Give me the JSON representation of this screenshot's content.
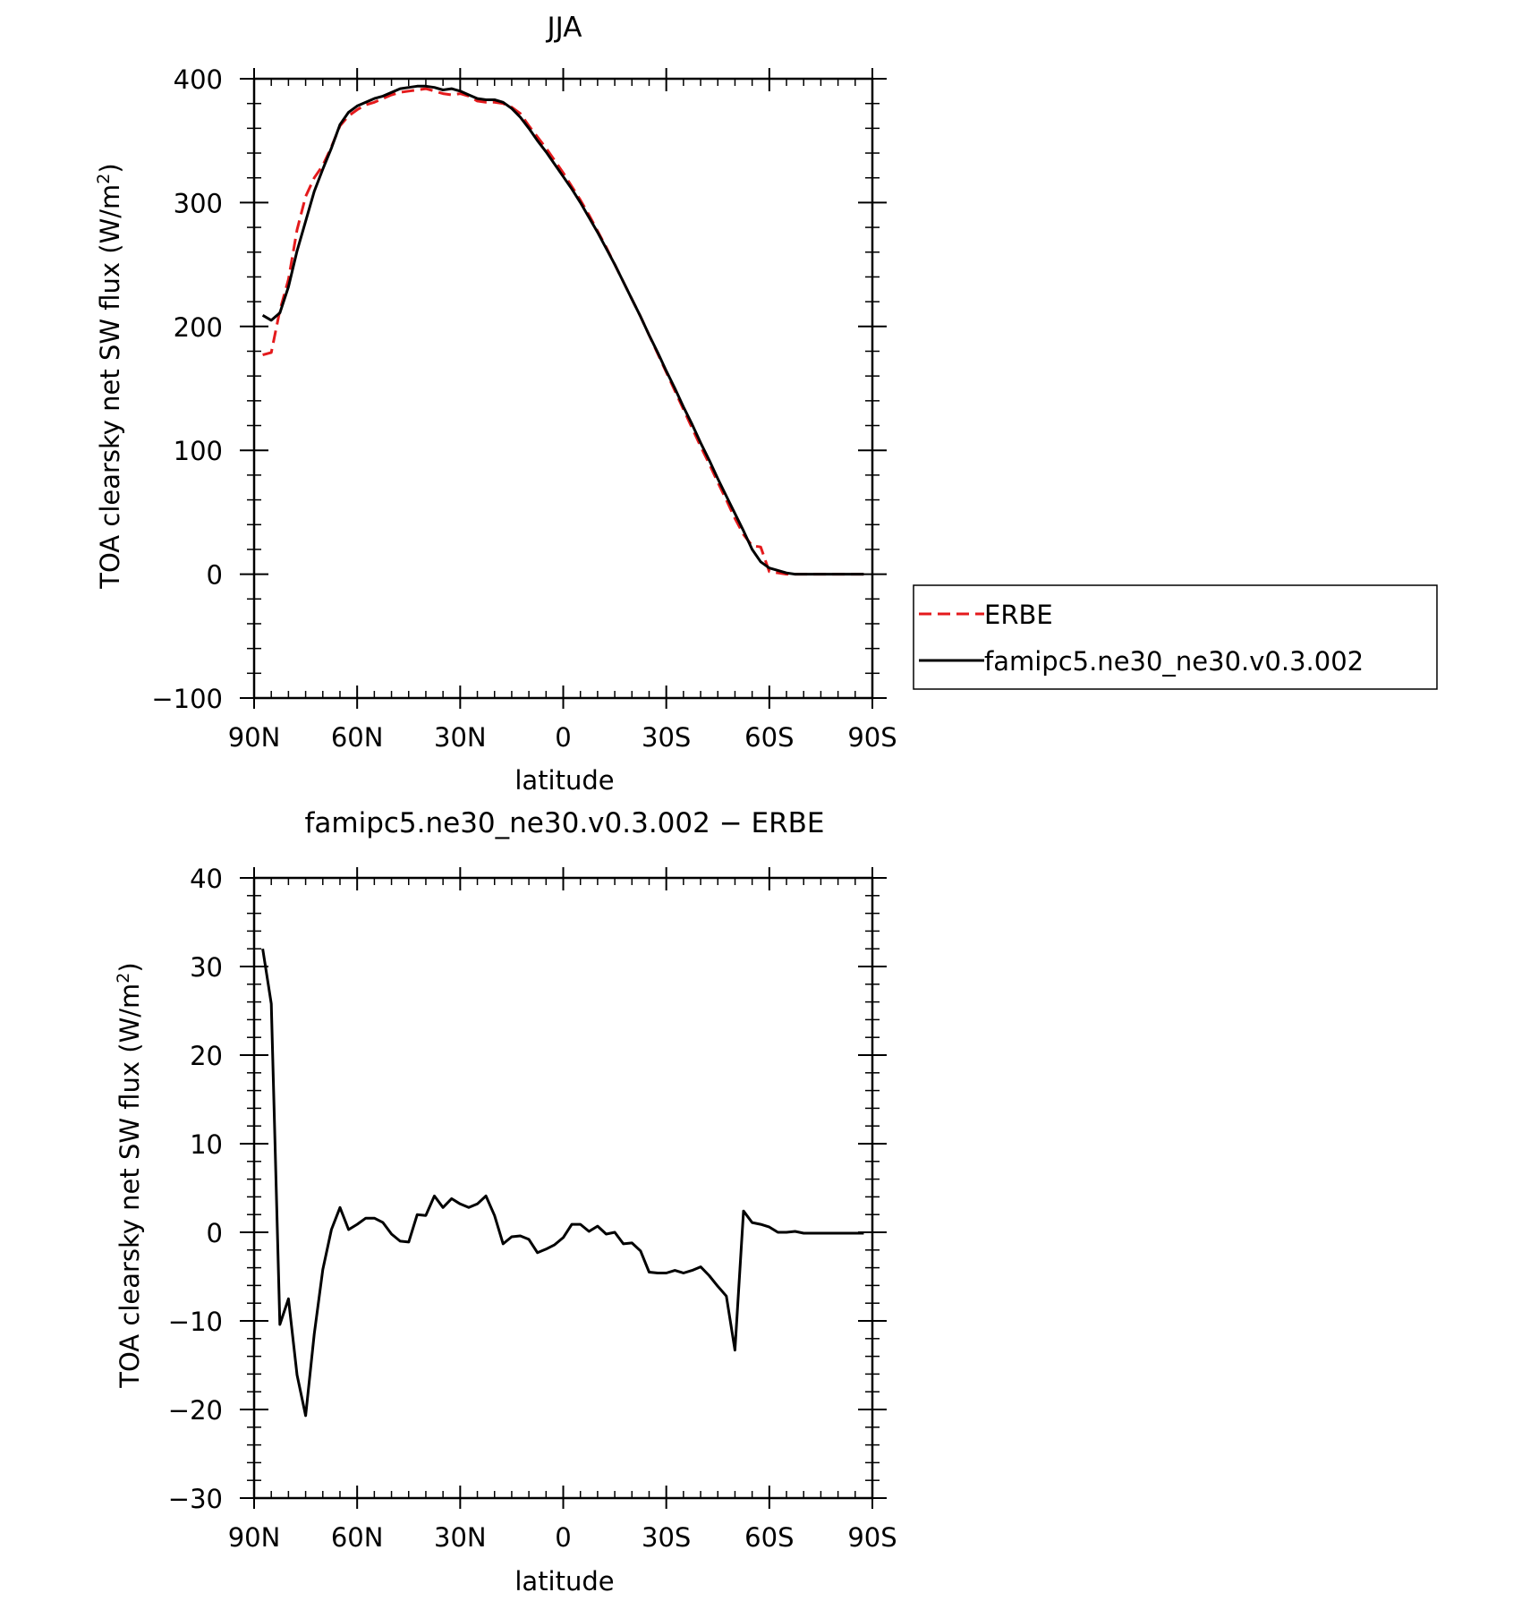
{
  "chart_data": [
    {
      "type": "line",
      "title": "JJA",
      "xlabel": "latitude",
      "ylabel": "TOA clearsky net SW flux (W/m",
      "ylabel_sup": "2",
      "ylabel_tail": ")",
      "xlim": [
        90,
        -90
      ],
      "ylim": [
        -100,
        400
      ],
      "xticks": [
        {
          "value": 90,
          "label": "90N"
        },
        {
          "value": 60,
          "label": "60N"
        },
        {
          "value": 30,
          "label": "30N"
        },
        {
          "value": 0,
          "label": "0"
        },
        {
          "value": -30,
          "label": "30S"
        },
        {
          "value": -60,
          "label": "60S"
        },
        {
          "value": -90,
          "label": "90S"
        }
      ],
      "yticks": [
        {
          "value": 400,
          "label": "400"
        },
        {
          "value": 300,
          "label": "300"
        },
        {
          "value": 200,
          "label": "200"
        },
        {
          "value": 100,
          "label": "100"
        },
        {
          "value": 0,
          "label": "0"
        },
        {
          "value": -100,
          "label": "−100"
        }
      ],
      "legend_position": "right",
      "series": [
        {
          "name": "ERBE",
          "color": "#e41a1c",
          "dash": "dashed",
          "x": [
            87.5,
            85,
            82.5,
            80,
            77.5,
            75,
            72.5,
            70,
            67.5,
            65,
            62.5,
            60,
            57.5,
            55,
            52.5,
            50,
            47.5,
            45,
            42.5,
            40,
            37.5,
            35,
            32.5,
            30,
            27.5,
            25,
            22.5,
            20,
            17.5,
            15,
            12.5,
            10,
            7.5,
            5,
            2.5,
            0,
            -2.5,
            -5,
            -7.5,
            -10,
            -12.5,
            -15,
            -17.5,
            -20,
            -22.5,
            -25,
            -27.5,
            -30,
            -32.5,
            -35,
            -37.5,
            -40,
            -42.5,
            -45,
            -47.5,
            -50,
            -52.5,
            -55,
            -57.5,
            -60,
            -62.5,
            -65,
            -67.5,
            -70,
            -72.5,
            -75,
            -77.5,
            -80,
            -82.5,
            -85,
            -87.5
          ],
          "y": [
            177,
            179,
            213,
            238,
            278,
            305,
            320,
            330,
            345,
            362,
            370,
            375,
            379,
            381,
            384,
            387,
            389,
            390,
            391,
            392,
            390,
            388,
            387,
            388,
            386,
            382,
            381,
            381,
            380,
            377,
            372,
            362,
            353,
            344,
            334,
            324,
            313,
            302,
            290,
            277,
            264,
            250,
            236,
            222,
            208,
            193,
            178,
            163,
            148,
            133,
            118,
            103,
            89,
            74,
            60,
            45,
            32,
            23,
            22,
            2,
            1,
            0,
            0,
            0,
            0,
            0,
            0,
            0,
            0,
            0,
            0
          ]
        },
        {
          "name": "famipc5.ne30_ne30.v0.3.002",
          "color": "#000000",
          "dash": "solid",
          "x": [
            87.5,
            85,
            82.5,
            80,
            77.5,
            75,
            72.5,
            70,
            67.5,
            65,
            62.5,
            60,
            57.5,
            55,
            52.5,
            50,
            47.5,
            45,
            42.5,
            40,
            37.5,
            35,
            32.5,
            30,
            27.5,
            25,
            22.5,
            20,
            17.5,
            15,
            12.5,
            10,
            7.5,
            5,
            2.5,
            0,
            -2.5,
            -5,
            -7.5,
            -10,
            -12.5,
            -15,
            -17.5,
            -20,
            -22.5,
            -25,
            -27.5,
            -30,
            -32.5,
            -35,
            -37.5,
            -40,
            -42.5,
            -45,
            -47.5,
            -50,
            -52.5,
            -55,
            -57.5,
            -60,
            -62.5,
            -65,
            -67.5,
            -70,
            -72.5,
            -75,
            -77.5,
            -80,
            -82.5,
            -85,
            -87.5
          ],
          "y": [
            209,
            205,
            211,
            232,
            261,
            285,
            309,
            327,
            344,
            363,
            373,
            378,
            381,
            384,
            386,
            389,
            392,
            393,
            394,
            394,
            393,
            391,
            392,
            390,
            387,
            384,
            383,
            383,
            381,
            376,
            369,
            360,
            350,
            341,
            331,
            321,
            311,
            300,
            288,
            276,
            263,
            250,
            236,
            222,
            208,
            193,
            179,
            164,
            150,
            135,
            121,
            106,
            92,
            77,
            63,
            49,
            35,
            20,
            10,
            5,
            3,
            1,
            0,
            0,
            0,
            0,
            0,
            0,
            0,
            0,
            0
          ]
        }
      ]
    },
    {
      "type": "line",
      "title": "famipc5.ne30_ne30.v0.3.002 − ERBE",
      "xlabel": "latitude",
      "ylabel": "TOA clearsky net SW flux (W/m",
      "ylabel_sup": "2",
      "ylabel_tail": ")",
      "xlim": [
        90,
        -90
      ],
      "ylim": [
        -30,
        40
      ],
      "xticks": [
        {
          "value": 90,
          "label": "90N"
        },
        {
          "value": 60,
          "label": "60N"
        },
        {
          "value": 30,
          "label": "30N"
        },
        {
          "value": 0,
          "label": "0"
        },
        {
          "value": -30,
          "label": "30S"
        },
        {
          "value": -60,
          "label": "60S"
        },
        {
          "value": -90,
          "label": "90S"
        }
      ],
      "yticks": [
        {
          "value": 40,
          "label": "40"
        },
        {
          "value": 30,
          "label": "30"
        },
        {
          "value": 20,
          "label": "20"
        },
        {
          "value": 10,
          "label": "10"
        },
        {
          "value": 0,
          "label": "0"
        },
        {
          "value": -10,
          "label": "−10"
        },
        {
          "value": -20,
          "label": "−20"
        },
        {
          "value": -30,
          "label": "−30"
        }
      ],
      "series": [
        {
          "color": "#000000",
          "dash": "solid",
          "x": [
            87.5,
            85,
            82.5,
            80,
            77.5,
            75,
            72.5,
            70,
            67.5,
            65,
            62.5,
            60,
            57.5,
            55,
            52.5,
            50,
            47.5,
            45,
            42.5,
            40,
            37.5,
            35,
            32.5,
            30,
            27.5,
            25,
            22.5,
            20,
            17.5,
            15,
            12.5,
            10,
            7.5,
            5,
            2.5,
            0,
            -2.5,
            -5,
            -7.5,
            -10,
            -12.5,
            -15,
            -17.5,
            -20,
            -22.5,
            -25,
            -27.5,
            -30,
            -32.5,
            -35,
            -37.5,
            -40,
            -42.5,
            -45,
            -47.5,
            -50,
            -52.5,
            -55,
            -57.5,
            -60,
            -62.5,
            -65,
            -67.5,
            -70,
            -72.5,
            -75,
            -77.5,
            -80,
            -82.5,
            -85,
            -87.5
          ],
          "y": [
            32,
            25.8,
            -10.4,
            -7.5,
            -16.1,
            -20.7,
            -11.5,
            -4.2,
            0.3,
            2.8,
            0.3,
            0.9,
            1.6,
            1.6,
            1.1,
            -0.2,
            -1.0,
            -1.1,
            2.0,
            1.9,
            4.1,
            2.8,
            3.8,
            3.2,
            2.8,
            3.2,
            4.1,
            1.9,
            -1.3,
            -0.5,
            -0.4,
            -0.8,
            -2.3,
            -1.9,
            -1.4,
            -0.6,
            0.9,
            0.9,
            0.1,
            0.7,
            -0.2,
            0.0,
            -1.3,
            -1.2,
            -2.1,
            -4.5,
            -4.6,
            -4.6,
            -4.3,
            -4.6,
            -4.3,
            -3.9,
            -4.9,
            -6.1,
            -7.2,
            -13.3,
            2.4,
            1.1,
            0.9,
            0.6,
            0.0,
            0.0,
            0.1,
            -0.1,
            -0.1,
            -0.1,
            -0.1,
            -0.1,
            -0.1,
            -0.1,
            -0.1
          ]
        }
      ]
    }
  ]
}
